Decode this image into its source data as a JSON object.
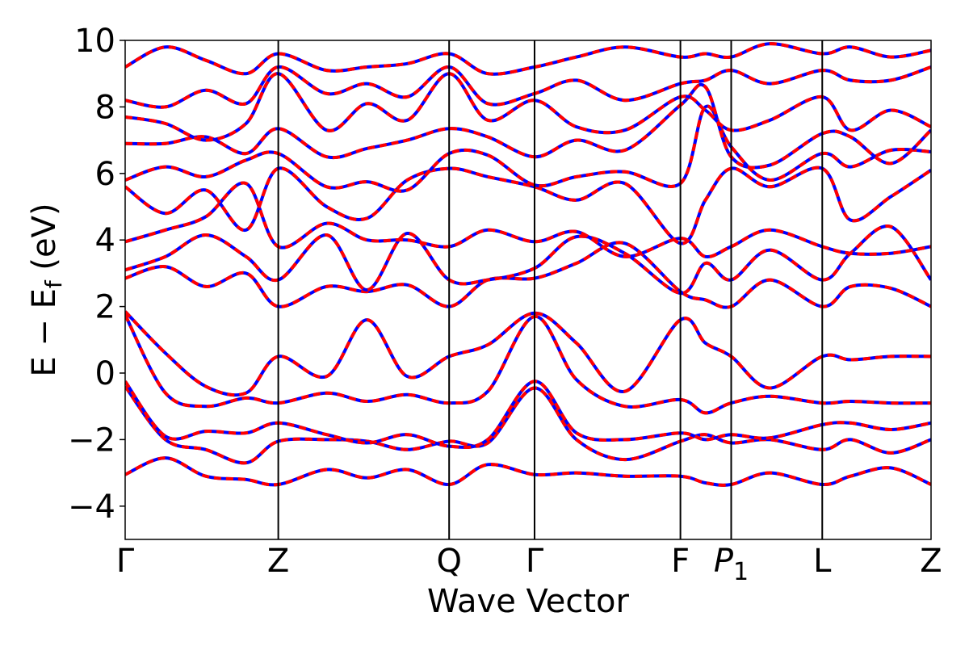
{
  "chart_data": {
    "type": "line",
    "title": "",
    "xlabel": "Wave Vector",
    "ylabel_parts": {
      "main": "E − E",
      "sub": "f",
      "unit": " (eV)"
    },
    "ylim": [
      -5,
      10
    ],
    "yticks": [
      -4,
      -2,
      0,
      2,
      4,
      6,
      8,
      10
    ],
    "ytick_labels": [
      "−4",
      "−2",
      "0",
      "2",
      "4",
      "6",
      "8",
      "10"
    ],
    "kpath": {
      "x_range": [
        0,
        1
      ],
      "points": [
        {
          "label": "Γ",
          "pos": 0.0,
          "subscript": ""
        },
        {
          "label": "Z",
          "pos": 0.19,
          "subscript": ""
        },
        {
          "label": "Q",
          "pos": 0.402,
          "subscript": ""
        },
        {
          "label": "Γ",
          "pos": 0.508,
          "subscript": ""
        },
        {
          "label": "F",
          "pos": 0.689,
          "subscript": ""
        },
        {
          "label": "P",
          "pos": 0.752,
          "subscript": "1"
        },
        {
          "label": "L",
          "pos": 0.865,
          "subscript": ""
        },
        {
          "label": "Z",
          "pos": 1.0,
          "subscript": ""
        }
      ]
    },
    "series_style": [
      {
        "role": "dft",
        "color": "#0000ff",
        "dashed": false
      },
      {
        "role": "model",
        "color": "#ff0000",
        "dashed": true
      }
    ],
    "bands": [
      {
        "x": [
          0,
          0.05,
          0.1,
          0.15,
          0.19,
          0.25,
          0.3,
          0.35,
          0.402,
          0.45,
          0.508,
          0.56,
          0.62,
          0.689,
          0.72,
          0.752,
          0.8,
          0.865,
          0.9,
          0.95,
          1.0
        ],
        "y": [
          -3.05,
          -2.55,
          -3.1,
          -3.2,
          -3.35,
          -2.9,
          -3.15,
          -2.9,
          -3.35,
          -2.75,
          -3.05,
          -3.0,
          -3.1,
          -3.1,
          -3.3,
          -3.35,
          -3.0,
          -3.35,
          -3.1,
          -2.85,
          -3.35
        ]
      },
      {
        "x": [
          0,
          0.05,
          0.1,
          0.15,
          0.19,
          0.25,
          0.3,
          0.35,
          0.402,
          0.45,
          0.508,
          0.56,
          0.62,
          0.689,
          0.72,
          0.752,
          0.8,
          0.865,
          0.9,
          0.95,
          1.0
        ],
        "y": [
          -0.4,
          -2.0,
          -2.3,
          -2.7,
          -2.05,
          -2.0,
          -2.05,
          -2.3,
          -2.05,
          -2.1,
          -0.45,
          -2.0,
          -2.6,
          -2.05,
          -1.85,
          -2.1,
          -2.0,
          -2.3,
          -2.0,
          -2.4,
          -2.0
        ]
      },
      {
        "x": [
          0,
          0.05,
          0.1,
          0.15,
          0.19,
          0.25,
          0.3,
          0.35,
          0.402,
          0.45,
          0.508,
          0.56,
          0.62,
          0.689,
          0.72,
          0.752,
          0.8,
          0.865,
          0.9,
          0.95,
          1.0
        ],
        "y": [
          -0.25,
          -1.9,
          -1.75,
          -1.8,
          -1.5,
          -1.85,
          -2.1,
          -1.85,
          -2.2,
          -2.0,
          -0.25,
          -1.8,
          -2.0,
          -1.8,
          -2.0,
          -1.85,
          -1.95,
          -1.55,
          -1.5,
          -1.7,
          -1.5
        ]
      },
      {
        "x": [
          0,
          0.05,
          0.1,
          0.15,
          0.19,
          0.25,
          0.3,
          0.35,
          0.402,
          0.45,
          0.508,
          0.56,
          0.62,
          0.689,
          0.72,
          0.752,
          0.8,
          0.865,
          0.9,
          0.95,
          1.0
        ],
        "y": [
          1.75,
          -0.6,
          -1.0,
          -0.75,
          -0.9,
          -0.6,
          -0.85,
          -0.65,
          -0.9,
          -0.55,
          1.7,
          -0.2,
          -1.0,
          -0.8,
          -1.2,
          -0.9,
          -0.7,
          -0.9,
          -0.85,
          -0.9,
          -0.9
        ]
      },
      {
        "x": [
          0,
          0.05,
          0.1,
          0.15,
          0.19,
          0.25,
          0.3,
          0.35,
          0.402,
          0.45,
          0.508,
          0.56,
          0.62,
          0.689,
          0.72,
          0.752,
          0.8,
          0.865,
          0.9,
          0.95,
          1.0
        ],
        "y": [
          1.85,
          0.6,
          -0.4,
          -0.6,
          0.5,
          -0.1,
          1.6,
          -0.1,
          0.5,
          0.85,
          1.8,
          0.9,
          -0.55,
          1.6,
          0.9,
          0.5,
          -0.45,
          0.5,
          0.4,
          0.5,
          0.5
        ]
      },
      {
        "x": [
          0,
          0.05,
          0.1,
          0.15,
          0.19,
          0.25,
          0.3,
          0.35,
          0.402,
          0.45,
          0.508,
          0.56,
          0.62,
          0.689,
          0.72,
          0.752,
          0.8,
          0.865,
          0.9,
          0.95,
          1.0
        ],
        "y": [
          2.85,
          3.2,
          2.6,
          3.0,
          2.0,
          2.6,
          2.45,
          2.65,
          2.0,
          2.8,
          2.85,
          3.3,
          3.9,
          2.45,
          2.2,
          2.0,
          2.8,
          2.0,
          2.6,
          2.55,
          2.0
        ]
      },
      {
        "x": [
          0,
          0.05,
          0.1,
          0.15,
          0.19,
          0.25,
          0.3,
          0.35,
          0.402,
          0.45,
          0.508,
          0.56,
          0.62,
          0.689,
          0.72,
          0.752,
          0.8,
          0.865,
          0.9,
          0.95,
          1.0
        ],
        "y": [
          3.1,
          3.5,
          4.15,
          3.5,
          2.8,
          4.15,
          2.5,
          4.2,
          2.8,
          2.8,
          3.15,
          4.1,
          3.6,
          2.4,
          3.3,
          2.8,
          3.7,
          2.8,
          3.6,
          4.4,
          2.8
        ]
      },
      {
        "x": [
          0,
          0.05,
          0.1,
          0.15,
          0.19,
          0.25,
          0.3,
          0.35,
          0.402,
          0.45,
          0.508,
          0.56,
          0.62,
          0.689,
          0.72,
          0.752,
          0.8,
          0.865,
          0.9,
          0.95,
          1.0
        ],
        "y": [
          3.95,
          4.3,
          4.7,
          5.7,
          3.8,
          4.5,
          4.0,
          4.0,
          3.8,
          4.3,
          3.95,
          4.25,
          3.5,
          4.05,
          3.5,
          3.8,
          4.3,
          3.8,
          3.6,
          3.6,
          3.8
        ]
      },
      {
        "x": [
          0,
          0.05,
          0.1,
          0.15,
          0.19,
          0.25,
          0.3,
          0.35,
          0.402,
          0.45,
          0.508,
          0.56,
          0.62,
          0.689,
          0.72,
          0.752,
          0.8,
          0.865,
          0.9,
          0.95,
          1.0
        ],
        "y": [
          5.6,
          4.8,
          5.5,
          4.3,
          6.15,
          5.0,
          4.65,
          5.8,
          6.15,
          5.9,
          5.6,
          5.2,
          5.7,
          3.9,
          5.2,
          6.15,
          5.6,
          6.15,
          4.6,
          5.3,
          6.1
        ]
      },
      {
        "x": [
          0,
          0.05,
          0.1,
          0.15,
          0.19,
          0.25,
          0.3,
          0.35,
          0.402,
          0.45,
          0.508,
          0.56,
          0.62,
          0.689,
          0.72,
          0.752,
          0.8,
          0.865,
          0.9,
          0.95,
          1.0
        ],
        "y": [
          5.8,
          6.2,
          5.9,
          6.4,
          6.6,
          5.6,
          5.75,
          5.5,
          6.6,
          6.55,
          5.65,
          5.9,
          6.05,
          5.7,
          8.0,
          6.8,
          5.8,
          6.6,
          6.2,
          6.7,
          6.65
        ]
      },
      {
        "x": [
          0,
          0.05,
          0.1,
          0.15,
          0.19,
          0.25,
          0.3,
          0.35,
          0.402,
          0.45,
          0.508,
          0.56,
          0.62,
          0.689,
          0.72,
          0.752,
          0.8,
          0.865,
          0.9,
          0.95,
          1.0
        ],
        "y": [
          6.9,
          6.9,
          7.1,
          6.6,
          7.35,
          6.5,
          6.75,
          7.0,
          7.35,
          7.1,
          6.5,
          7.0,
          6.7,
          8.05,
          8.6,
          6.5,
          6.25,
          7.2,
          7.1,
          6.3,
          7.3
        ]
      },
      {
        "x": [
          0,
          0.05,
          0.1,
          0.15,
          0.19,
          0.25,
          0.3,
          0.35,
          0.402,
          0.45,
          0.508,
          0.56,
          0.62,
          0.689,
          0.72,
          0.752,
          0.8,
          0.865,
          0.9,
          0.95,
          1.0
        ],
        "y": [
          7.7,
          7.5,
          7.0,
          7.5,
          9.0,
          7.3,
          8.1,
          7.6,
          9.0,
          7.6,
          8.2,
          7.4,
          7.3,
          8.3,
          7.9,
          7.3,
          7.6,
          8.3,
          7.3,
          7.9,
          7.4
        ]
      },
      {
        "x": [
          0,
          0.05,
          0.1,
          0.15,
          0.19,
          0.25,
          0.3,
          0.35,
          0.402,
          0.45,
          0.508,
          0.56,
          0.62,
          0.689,
          0.72,
          0.752,
          0.8,
          0.865,
          0.9,
          0.95,
          1.0
        ],
        "y": [
          8.2,
          8.0,
          8.5,
          8.1,
          9.2,
          8.4,
          8.7,
          8.3,
          9.2,
          8.1,
          8.4,
          8.8,
          8.2,
          8.7,
          8.8,
          9.1,
          8.7,
          9.1,
          8.8,
          8.8,
          9.2
        ]
      },
      {
        "x": [
          0,
          0.05,
          0.1,
          0.15,
          0.19,
          0.25,
          0.3,
          0.35,
          0.402,
          0.45,
          0.508,
          0.56,
          0.62,
          0.689,
          0.72,
          0.752,
          0.8,
          0.865,
          0.9,
          0.95,
          1.0
        ],
        "y": [
          9.2,
          9.8,
          9.4,
          9.0,
          9.6,
          9.1,
          9.2,
          9.3,
          9.6,
          9.0,
          9.2,
          9.5,
          9.8,
          9.5,
          9.6,
          9.5,
          9.9,
          9.6,
          9.8,
          9.5,
          9.7
        ]
      }
    ]
  }
}
